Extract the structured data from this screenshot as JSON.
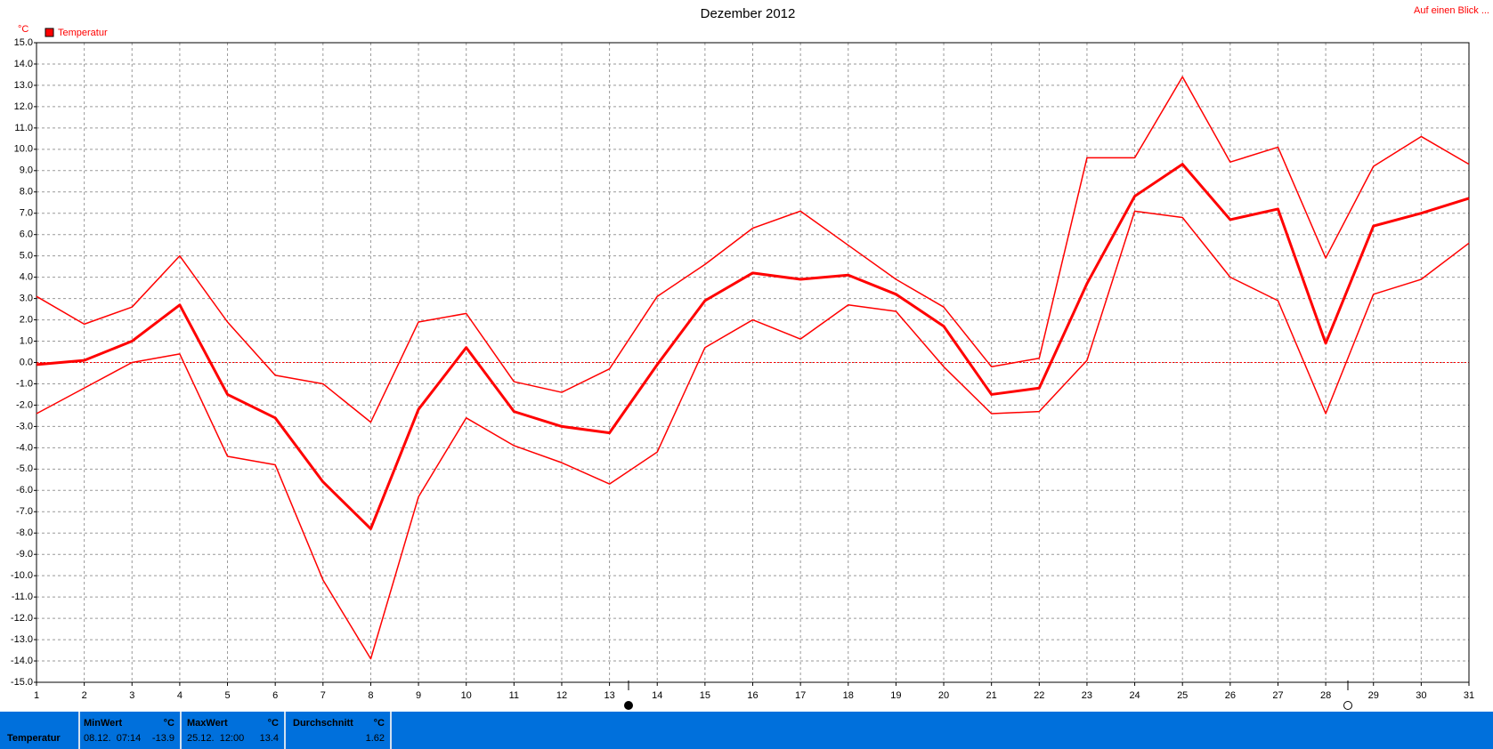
{
  "chart_data": {
    "type": "line",
    "title": "Dezember 2012",
    "unit": "°C",
    "link": "Auf einen Blick ...",
    "x": [
      1,
      2,
      3,
      4,
      5,
      6,
      7,
      8,
      9,
      10,
      11,
      12,
      13,
      14,
      15,
      16,
      17,
      18,
      19,
      20,
      21,
      22,
      23,
      24,
      25,
      26,
      27,
      28,
      29,
      30,
      31
    ],
    "xlim": [
      1,
      31
    ],
    "xticks": [
      1,
      2,
      3,
      4,
      5,
      6,
      7,
      8,
      9,
      10,
      11,
      12,
      13,
      14,
      15,
      16,
      17,
      18,
      19,
      20,
      21,
      22,
      23,
      24,
      25,
      26,
      27,
      28,
      29,
      30,
      31
    ],
    "ylim": [
      -15,
      15
    ],
    "yticks": [
      {
        "value": 15,
        "label": "15.0"
      },
      {
        "value": 14,
        "label": "14.0"
      },
      {
        "value": 13,
        "label": "13.0"
      },
      {
        "value": 12,
        "label": "12.0"
      },
      {
        "value": 11,
        "label": "11.0"
      },
      {
        "value": 10,
        "label": "10.0"
      },
      {
        "value": 9,
        "label": "9.0"
      },
      {
        "value": 8,
        "label": "8.0"
      },
      {
        "value": 7,
        "label": "7.0"
      },
      {
        "value": 6,
        "label": "6.0"
      },
      {
        "value": 5,
        "label": "5.0"
      },
      {
        "value": 4,
        "label": "4.0"
      },
      {
        "value": 3,
        "label": "3.0"
      },
      {
        "value": 2,
        "label": "2.0"
      },
      {
        "value": 1,
        "label": "1.0"
      },
      {
        "value": 0,
        "label": "0.0"
      },
      {
        "value": -1,
        "label": "-1.0"
      },
      {
        "value": -2,
        "label": "-2.0"
      },
      {
        "value": -3,
        "label": "-3.0"
      },
      {
        "value": -4,
        "label": "-4.0"
      },
      {
        "value": -5,
        "label": "-5.0"
      },
      {
        "value": -6,
        "label": "-6.0"
      },
      {
        "value": -7,
        "label": "-7.0"
      },
      {
        "value": -8,
        "label": "-8.0"
      },
      {
        "value": -9,
        "label": "-9.0"
      },
      {
        "value": -10,
        "label": "-10.0"
      },
      {
        "value": -11,
        "label": "-11.0"
      },
      {
        "value": -12,
        "label": "-12.0"
      },
      {
        "value": -13,
        "label": "-13.0"
      },
      {
        "value": -14,
        "label": "-14.0"
      },
      {
        "value": -15,
        "label": "-15.0"
      }
    ],
    "grid": true,
    "zero_line": true,
    "legend": "top-left",
    "series": [
      {
        "name": "Temperatur",
        "color": "#ff0000",
        "values": [
          -0.1,
          0.1,
          1.0,
          2.7,
          -1.5,
          -2.6,
          -5.6,
          -7.8,
          -2.2,
          0.7,
          -2.3,
          -3.0,
          -3.3,
          -0.1,
          2.9,
          4.2,
          3.9,
          4.1,
          3.2,
          1.7,
          -1.5,
          -1.2,
          3.7,
          7.8,
          9.3,
          6.7,
          7.2,
          0.9,
          6.4,
          7.0,
          7.7
        ]
      },
      {
        "color": "#ff0000",
        "values": [
          3.1,
          1.8,
          2.6,
          5.0,
          1.9,
          -0.6,
          -1.0,
          -2.8,
          1.9,
          2.3,
          -0.9,
          -1.4,
          -0.3,
          3.1,
          4.6,
          6.3,
          7.1,
          5.5,
          3.9,
          2.6,
          -0.2,
          0.2,
          9.6,
          9.6,
          13.4,
          9.4,
          10.1,
          4.9,
          9.2,
          10.6,
          9.3
        ]
      },
      {
        "color": "#ff0000",
        "values": [
          -2.4,
          -1.2,
          0.0,
          0.4,
          -4.4,
          -4.8,
          -10.2,
          -13.9,
          -6.3,
          -2.6,
          -3.9,
          -4.7,
          -5.7,
          -4.2,
          0.7,
          2.0,
          1.1,
          2.7,
          2.4,
          -0.2,
          -2.4,
          -2.3,
          0.1,
          7.1,
          6.8,
          4.0,
          2.9,
          -2.4,
          3.2,
          3.9,
          5.6
        ]
      }
    ]
  },
  "stats": {
    "label": "Temperatur",
    "min": {
      "title": "MinWert",
      "unit": "°C",
      "time": "08.12.  07:14",
      "value": -13.9
    },
    "max": {
      "title": "MaxWert",
      "unit": "°C",
      "time": "25.12.  12:00",
      "value": 13.4
    },
    "avg": {
      "title": "Durchschnitt",
      "unit": "°C",
      "value": 1.62
    }
  }
}
